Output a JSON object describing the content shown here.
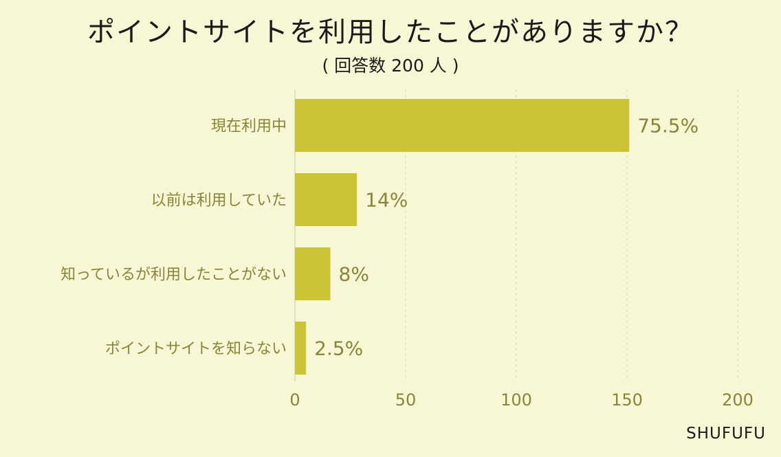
{
  "header": {
    "title": "ポイントサイトを利用したことがありますか？",
    "subtitle": "( 回答数 200 人 )"
  },
  "brand": "SHUFUFU",
  "colors": {
    "background": "#f8f7d5",
    "bar": "#cbc536",
    "text": "#8a8438",
    "title": "#1a1a1a"
  },
  "chart_data": {
    "type": "bar",
    "orientation": "horizontal",
    "categories": [
      "現在利用中",
      "以前は利用していた",
      "知っているが利用したことがない",
      "ポイントサイトを知らない"
    ],
    "values": [
      151,
      28,
      16,
      5
    ],
    "data_labels": [
      "75.5%",
      "14%",
      "8%",
      "2.5%"
    ],
    "xlim": [
      0,
      200
    ],
    "xticks": [
      "0",
      "50",
      "100",
      "150",
      "200"
    ],
    "grid": true
  }
}
